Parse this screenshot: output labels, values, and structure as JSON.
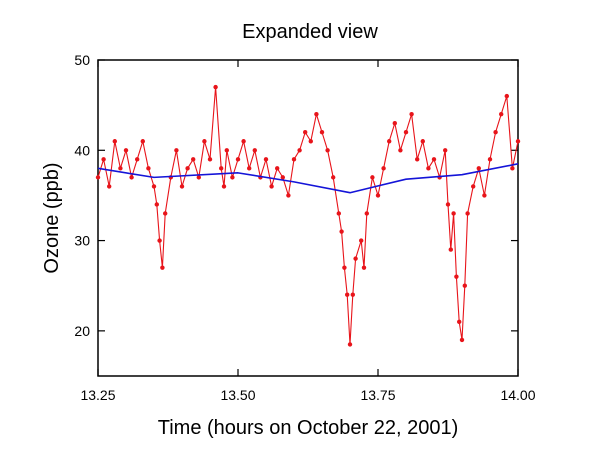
{
  "chart_data": {
    "type": "line",
    "title": "Expanded view",
    "xlabel": "Time (hours on October 22, 2001)",
    "ylabel": "Ozone (ppb)",
    "xlim": [
      13.25,
      14.0
    ],
    "ylim": [
      15,
      50
    ],
    "x_ticks": [
      13.25,
      13.5,
      13.75,
      14.0
    ],
    "x_tick_labels": [
      "13.25",
      "13.50",
      "13.75",
      "14.00"
    ],
    "y_ticks": [
      20,
      30,
      40,
      50
    ],
    "y_tick_labels": [
      "20",
      "30",
      "40",
      "50"
    ],
    "grid": false,
    "legend": "none",
    "series": [
      {
        "color": "#e8141a",
        "style": "line-with-dot-markers",
        "x": [
          13.25,
          13.26,
          13.27,
          13.28,
          13.29,
          13.3,
          13.31,
          13.32,
          13.33,
          13.34,
          13.35,
          13.355,
          13.36,
          13.365,
          13.37,
          13.38,
          13.39,
          13.4,
          13.41,
          13.42,
          13.43,
          13.44,
          13.45,
          13.46,
          13.47,
          13.475,
          13.48,
          13.49,
          13.5,
          13.51,
          13.52,
          13.53,
          13.54,
          13.55,
          13.56,
          13.57,
          13.58,
          13.59,
          13.6,
          13.61,
          13.62,
          13.63,
          13.64,
          13.65,
          13.66,
          13.67,
          13.68,
          13.685,
          13.69,
          13.695,
          13.7,
          13.705,
          13.71,
          13.72,
          13.725,
          13.73,
          13.74,
          13.75,
          13.76,
          13.77,
          13.78,
          13.79,
          13.8,
          13.81,
          13.82,
          13.83,
          13.84,
          13.85,
          13.86,
          13.87,
          13.875,
          13.88,
          13.885,
          13.89,
          13.895,
          13.9,
          13.905,
          13.91,
          13.92,
          13.93,
          13.94,
          13.95,
          13.96,
          13.97,
          13.98,
          13.99,
          14.0
        ],
        "y": [
          37,
          39,
          36,
          41,
          38,
          40,
          37,
          39,
          41,
          38,
          36,
          34,
          30,
          27,
          33,
          37,
          40,
          36,
          38,
          39,
          37,
          41,
          39,
          47,
          38,
          36,
          40,
          37,
          39,
          41,
          38,
          40,
          37,
          39,
          36,
          38,
          37,
          35,
          39,
          40,
          42,
          41,
          44,
          42,
          40,
          37,
          33,
          31,
          27,
          24,
          18.5,
          24,
          28,
          30,
          27,
          33,
          37,
          35,
          38,
          41,
          43,
          40,
          42,
          44,
          39,
          41,
          38,
          39,
          37,
          40,
          34,
          29,
          33,
          26,
          21,
          19,
          25,
          33,
          36,
          38,
          35,
          39,
          42,
          44,
          46,
          38,
          41
        ]
      },
      {
        "color": "#1414d8",
        "style": "line",
        "x": [
          13.25,
          13.35,
          13.5,
          13.6,
          13.7,
          13.8,
          13.9,
          14.0
        ],
        "y": [
          38.0,
          37.0,
          37.5,
          36.5,
          35.3,
          36.8,
          37.3,
          38.5
        ]
      }
    ]
  }
}
